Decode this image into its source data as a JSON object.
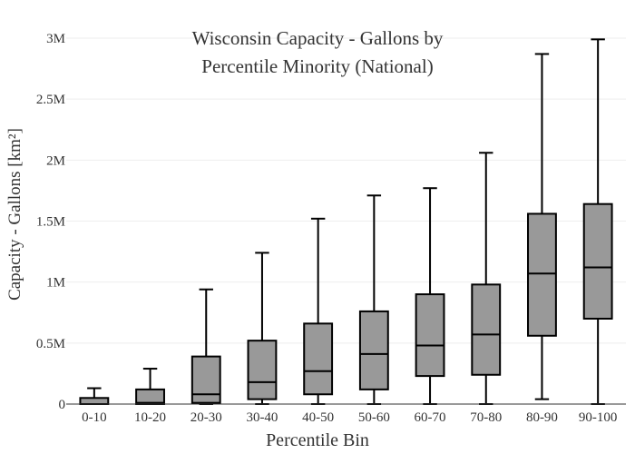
{
  "chart_data": {
    "type": "box",
    "title_lines": [
      "Wisconsin Capacity - Gallons by",
      "Percentile Minority (National)"
    ],
    "xlabel": "Percentile Bin",
    "ylabel": "Capacity - Gallons  [km²]",
    "ylim": [
      0,
      3000000
    ],
    "yticks": [
      {
        "value": 0,
        "label": "0"
      },
      {
        "value": 500000,
        "label": "0.5M"
      },
      {
        "value": 1000000,
        "label": "1M"
      },
      {
        "value": 1500000,
        "label": "1.5M"
      },
      {
        "value": 2000000,
        "label": "2M"
      },
      {
        "value": 2500000,
        "label": "2.5M"
      },
      {
        "value": 3000000,
        "label": "3M"
      }
    ],
    "categories": [
      "0-10",
      "10-20",
      "20-30",
      "30-40",
      "40-50",
      "50-60",
      "60-70",
      "70-80",
      "80-90",
      "90-100"
    ],
    "boxes": [
      {
        "min": 0,
        "q1": 0,
        "median": 0,
        "q3": 50000,
        "max": 130000
      },
      {
        "min": 0,
        "q1": 0,
        "median": 10000,
        "q3": 120000,
        "max": 290000
      },
      {
        "min": 0,
        "q1": 10000,
        "median": 80000,
        "q3": 390000,
        "max": 940000
      },
      {
        "min": 0,
        "q1": 40000,
        "median": 180000,
        "q3": 520000,
        "max": 1240000
      },
      {
        "min": 0,
        "q1": 80000,
        "median": 270000,
        "q3": 660000,
        "max": 1520000
      },
      {
        "min": 0,
        "q1": 120000,
        "median": 410000,
        "q3": 760000,
        "max": 1710000
      },
      {
        "min": 0,
        "q1": 230000,
        "median": 480000,
        "q3": 900000,
        "max": 1770000
      },
      {
        "min": 0,
        "q1": 240000,
        "median": 570000,
        "q3": 980000,
        "max": 2060000
      },
      {
        "min": 40000,
        "q1": 560000,
        "median": 1070000,
        "q3": 1560000,
        "max": 2870000
      },
      {
        "min": 0,
        "q1": 700000,
        "median": 1120000,
        "q3": 1640000,
        "max": 2990000
      }
    ],
    "box_fill": "#999999",
    "line_color": "#000000",
    "grid": true,
    "grid_color": "#eeeeee"
  }
}
